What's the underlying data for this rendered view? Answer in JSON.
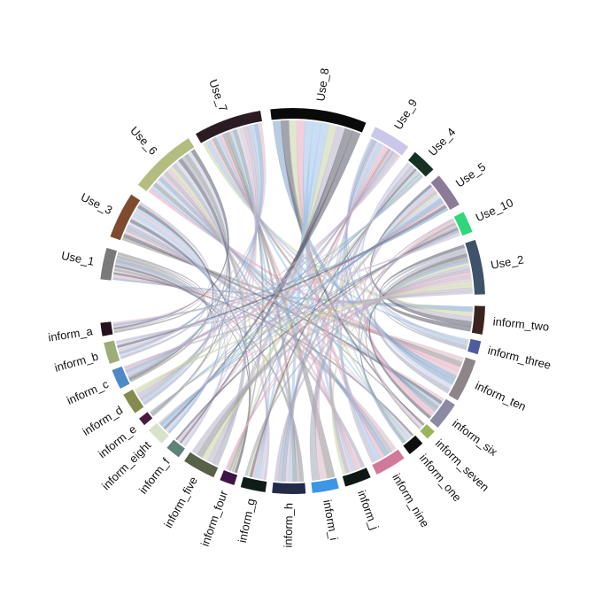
{
  "chart_data": {
    "type": "chord",
    "sectors": [
      {
        "name": "Use_1",
        "color": "#7a7a7a"
      },
      {
        "name": "Use_3",
        "color": "#7e4b2f"
      },
      {
        "name": "Use_6",
        "color": "#b3bd80"
      },
      {
        "name": "Use_7",
        "color": "#2b1b22"
      },
      {
        "name": "Use_8",
        "color": "#0a0a0a"
      },
      {
        "name": "Use_9",
        "color": "#cbc7ea"
      },
      {
        "name": "Use_4",
        "color": "#173024"
      },
      {
        "name": "Use_5",
        "color": "#8c7b98"
      },
      {
        "name": "Use_10",
        "color": "#2fd67a"
      },
      {
        "name": "Use_2",
        "color": "#3e5369"
      },
      {
        "name": "inform_two",
        "color": "#3b2320"
      },
      {
        "name": "inform_three",
        "color": "#4e5d9c"
      },
      {
        "name": "inform_ten",
        "color": "#8e8589"
      },
      {
        "name": "inform_six",
        "color": "#8a8aa3"
      },
      {
        "name": "inform_seven",
        "color": "#9ab458"
      },
      {
        "name": "inform_one",
        "color": "#0e0e0e"
      },
      {
        "name": "inform_nine",
        "color": "#d0799a"
      },
      {
        "name": "inform_j",
        "color": "#0e1713"
      },
      {
        "name": "inform_i",
        "color": "#3d95e6"
      },
      {
        "name": "inform_h",
        "color": "#222b4a"
      },
      {
        "name": "inform_g",
        "color": "#0f1c18"
      },
      {
        "name": "inform_four",
        "color": "#3f1547"
      },
      {
        "name": "inform_five",
        "color": "#566148"
      },
      {
        "name": "inform_f",
        "color": "#5d8277"
      },
      {
        "name": "inform_eight",
        "color": "#d7e2c9"
      },
      {
        "name": "inform_e",
        "color": "#4a1b3a"
      },
      {
        "name": "inform_d",
        "color": "#858b4f"
      },
      {
        "name": "inform_c",
        "color": "#4e88c6"
      },
      {
        "name": "inform_b",
        "color": "#9eac77"
      },
      {
        "name": "inform_a",
        "color": "#25101e"
      }
    ],
    "link_colors": [
      "#8f8f8f",
      "#a3a6b8",
      "#c5cbe6",
      "#e6a8bd",
      "#9cc3ea",
      "#c9d2a8",
      "#5a5a6a",
      "#b8b0c8",
      "#7fa3c9",
      "#d9b8c6"
    ]
  }
}
